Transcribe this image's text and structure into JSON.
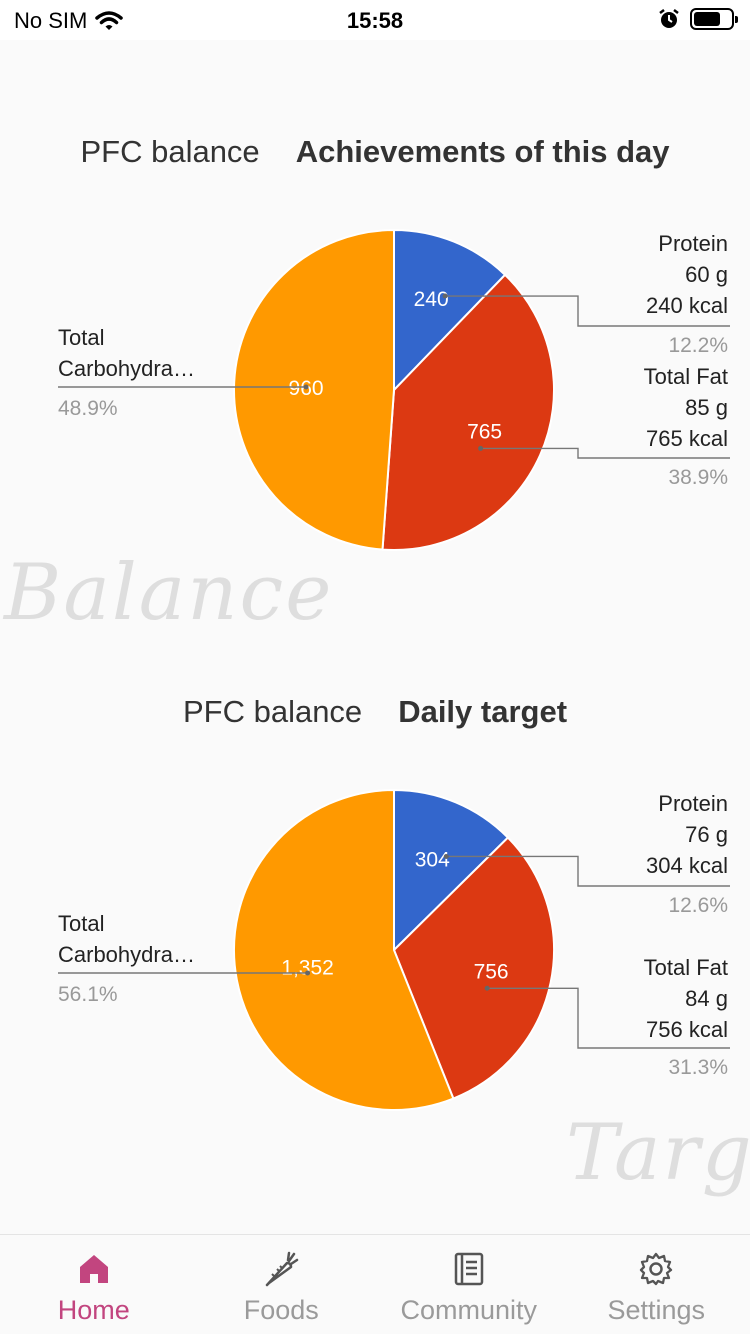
{
  "status_bar": {
    "carrier": "No SIM",
    "time": "15:58",
    "icons": [
      "wifi-icon",
      "alarm-icon",
      "battery-icon"
    ]
  },
  "charts": [
    {
      "subtitle": "PFC balance",
      "title": "Achievements of this day",
      "watermark": "Balance"
    },
    {
      "subtitle": "PFC balance",
      "title": "Daily target",
      "watermark": "Target"
    }
  ],
  "chart_data": [
    {
      "type": "pie",
      "title": "Achievements of this day",
      "slices": [
        {
          "name": "Protein",
          "value": 240,
          "value_label": "240",
          "amount": "60 g",
          "kcal": "240 kcal",
          "percent": "12.2%",
          "color": "#3366cc"
        },
        {
          "name": "Total Fat",
          "value": 765,
          "value_label": "765",
          "amount": "85 g",
          "kcal": "765 kcal",
          "percent": "38.9%",
          "color": "#dc3912"
        },
        {
          "name": "Total Carbohydra…",
          "value": 960,
          "value_label": "960",
          "percent": "48.9%",
          "color": "#ff9900"
        }
      ]
    },
    {
      "type": "pie",
      "title": "Daily target",
      "slices": [
        {
          "name": "Protein",
          "value": 304,
          "value_label": "304",
          "amount": "76 g",
          "kcal": "304 kcal",
          "percent": "12.6%",
          "color": "#3366cc"
        },
        {
          "name": "Total Fat",
          "value": 756,
          "value_label": "756",
          "amount": "84 g",
          "kcal": "756 kcal",
          "percent": "31.3%",
          "color": "#dc3912"
        },
        {
          "name": "Total Carbohydra…",
          "value": 1352,
          "value_label": "1,352",
          "percent": "56.1%",
          "color": "#ff9900"
        }
      ]
    }
  ],
  "tabs": [
    {
      "label": "Home",
      "icon": "home-icon",
      "active": true
    },
    {
      "label": "Foods",
      "icon": "carrot-icon",
      "active": false
    },
    {
      "label": "Community",
      "icon": "notebook-icon",
      "active": false
    },
    {
      "label": "Settings",
      "icon": "gear-icon",
      "active": false
    }
  ],
  "colors": {
    "accent": "#c2457f",
    "inactive": "#9a9a9a"
  }
}
